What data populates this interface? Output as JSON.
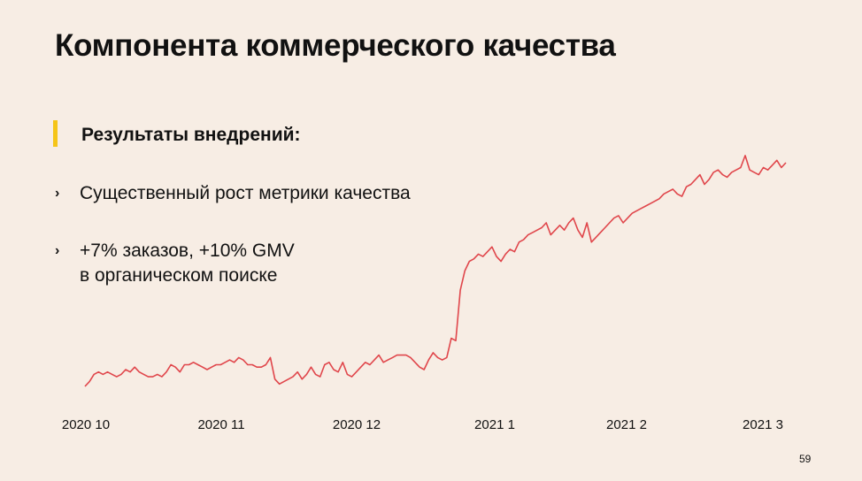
{
  "slide": {
    "title": "Компонента коммерческого качества",
    "section_heading": "Результаты внедрений:",
    "bullets": [
      {
        "marker": "›",
        "lines": [
          "Существенный рост метрики качества"
        ]
      },
      {
        "marker": "›",
        "lines": [
          "+7% заказов, +10% GMV",
          "в органическом поиске"
        ]
      }
    ],
    "page_number": "59"
  },
  "colors": {
    "background": "#f7ede4",
    "accent": "#f5c518",
    "line": "#e0464b",
    "text": "#111111"
  },
  "chart_data": {
    "type": "line",
    "title": "",
    "xlabel": "",
    "ylabel": "",
    "x_tick_labels": [
      "2020 10",
      "2020 11",
      "2020 12",
      "2021 1",
      "2021 2",
      "2021 3"
    ],
    "x_range": [
      0,
      155
    ],
    "y_range": [
      0,
      100
    ],
    "y_axis_shown": false,
    "grid": false,
    "series": [
      {
        "values": [
          0,
          2,
          5,
          6,
          5,
          6,
          5,
          4,
          5,
          7,
          6,
          8,
          6,
          5,
          4,
          4,
          5,
          4,
          6,
          9,
          8,
          6,
          9,
          9,
          10,
          9,
          8,
          7,
          8,
          9,
          9,
          10,
          11,
          10,
          12,
          11,
          9,
          9,
          8,
          8,
          9,
          12,
          3,
          1,
          2,
          3,
          4,
          6,
          3,
          5,
          8,
          5,
          4,
          9,
          10,
          7,
          6,
          10,
          5,
          4,
          6,
          8,
          10,
          9,
          11,
          13,
          10,
          11,
          12,
          13,
          13,
          13,
          12,
          10,
          8,
          7,
          11,
          14,
          12,
          11,
          12,
          20,
          19,
          40,
          48,
          52,
          53,
          55,
          54,
          56,
          58,
          54,
          52,
          55,
          57,
          56,
          60,
          61,
          63,
          64,
          65,
          66,
          68,
          63,
          65,
          67,
          65,
          68,
          70,
          65,
          62,
          68,
          60,
          62,
          64,
          66,
          68,
          70,
          71,
          68,
          70,
          72,
          73,
          74,
          75,
          76,
          77,
          78,
          80,
          81,
          82,
          80,
          79,
          83,
          84,
          86,
          88,
          84,
          86,
          89,
          90,
          88,
          87,
          89,
          90,
          91,
          96,
          90,
          89,
          88,
          91,
          90,
          92,
          94,
          91,
          93
        ]
      }
    ]
  }
}
